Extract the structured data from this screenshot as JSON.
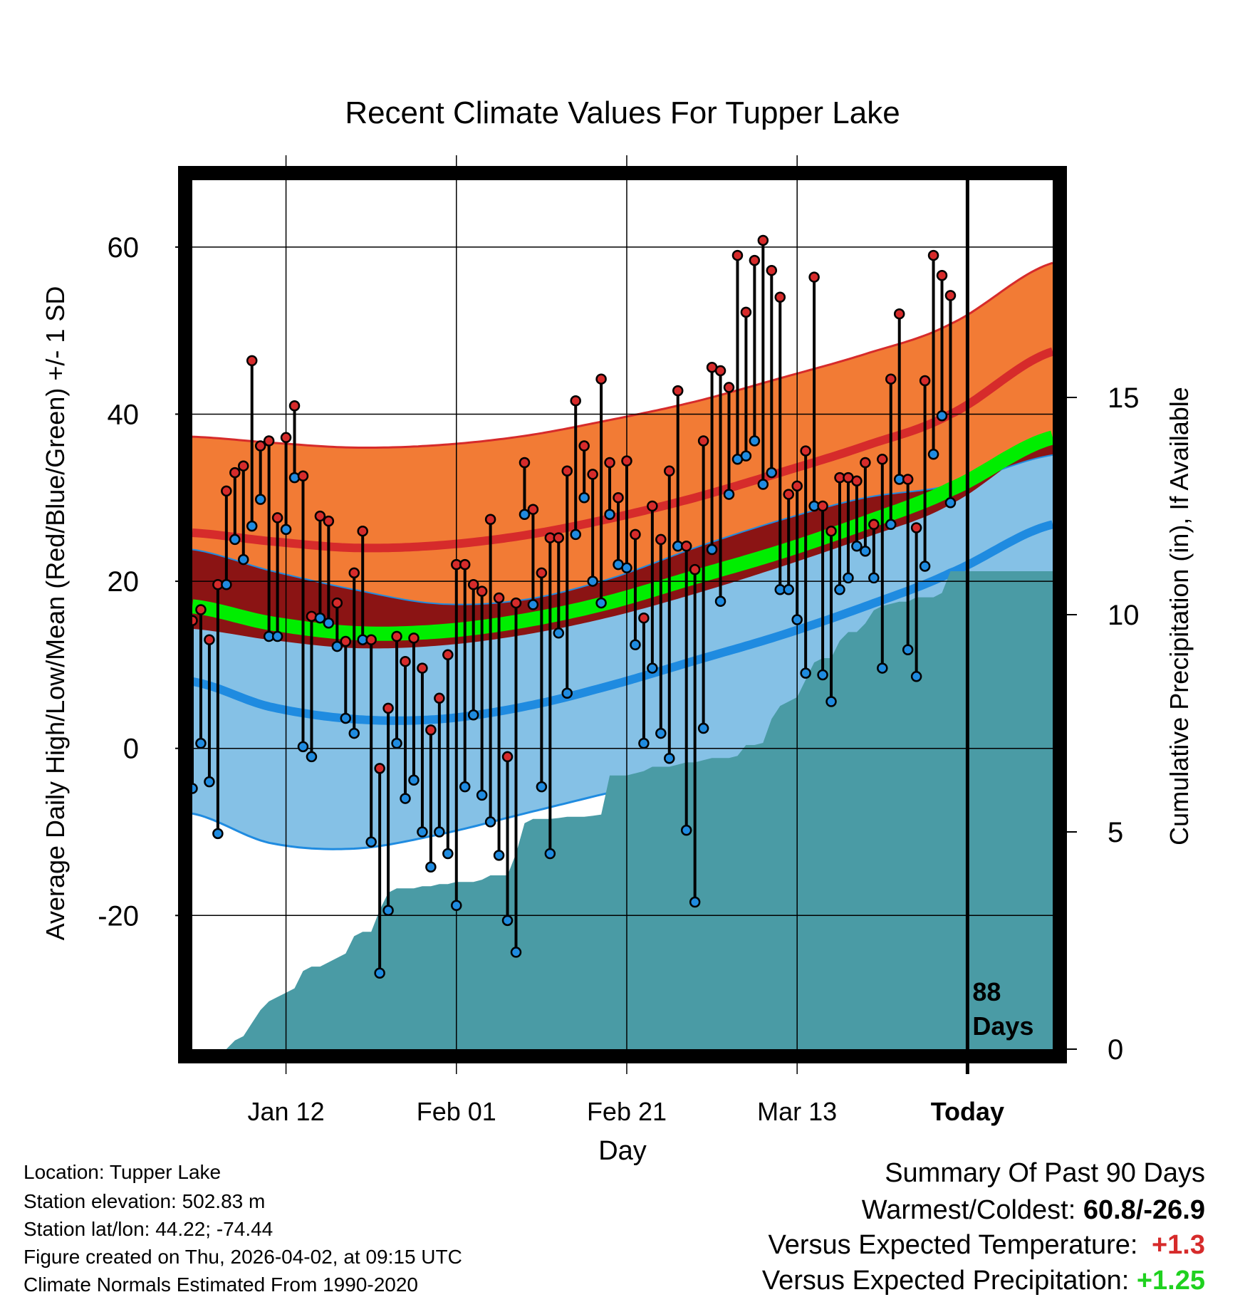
{
  "chart_data": {
    "type": "line",
    "title": "Recent Climate Values For Tupper Lake",
    "xlabel": "Day",
    "ylabel": "Average Daily High/Low/Mean (Red/Blue/Green) +/- 1 SD",
    "y2label": "Cumulative Precipitation (in), If Available",
    "ylim": [
      -36,
      68
    ],
    "y2lim": [
      0,
      20
    ],
    "yticks": [
      "-20",
      "0",
      "20",
      "40",
      "60"
    ],
    "y2ticks": [
      "0",
      "5",
      "10",
      "15"
    ],
    "xticks": [
      {
        "day": 12,
        "label": "Jan 12"
      },
      {
        "day": 32,
        "label": "Feb 01"
      },
      {
        "day": 52,
        "label": "Feb 21"
      },
      {
        "day": 72,
        "label": "Mar 13"
      },
      {
        "day": 92,
        "label": "Today"
      }
    ],
    "xlim": [
      1,
      102
    ],
    "today_day": 92,
    "today_label": [
      "88",
      "Days"
    ],
    "normals": {
      "days": [
        1,
        10,
        20,
        30,
        40,
        50,
        60,
        70,
        80,
        90,
        102
      ],
      "high_mean": [
        25.8,
        24.8,
        24.0,
        24.3,
        25.5,
        27.5,
        30.0,
        33.0,
        36.2,
        40.0,
        47.5
      ],
      "high_sd": [
        11.5,
        11.8,
        12.0,
        12.0,
        11.9,
        11.8,
        11.5,
        11.3,
        11.0,
        10.8,
        10.6
      ],
      "low_mean": [
        8.0,
        5.0,
        3.5,
        3.5,
        5.0,
        7.5,
        10.5,
        13.5,
        17.0,
        21.0,
        26.8
      ],
      "low_sd": [
        15.8,
        16.3,
        15.5,
        13.8,
        12.8,
        12.8,
        13.5,
        13.8,
        13.0,
        10.5,
        8.3
      ],
      "mean_mean": [
        17.0,
        15.0,
        13.8,
        14.0,
        15.3,
        17.5,
        20.5,
        23.5,
        27.0,
        31.0,
        37.2
      ]
    },
    "series": [
      {
        "name": "High",
        "color": "#d62b2b",
        "values": [
          15.3,
          16.6,
          13.0,
          19.6,
          30.8,
          33.0,
          33.8,
          46.4,
          36.2,
          36.8,
          27.6,
          37.2,
          41.0,
          32.6,
          15.8,
          27.8,
          27.2,
          17.4,
          12.8,
          21.0,
          26.0,
          13.0,
          -2.4,
          4.8,
          13.4,
          10.4,
          13.2,
          9.6,
          2.2,
          6.0,
          11.2,
          22.0,
          22.0,
          19.6,
          18.8,
          27.4,
          18.0,
          -1.0,
          17.4,
          34.2,
          28.6,
          21.0,
          25.2,
          25.2,
          33.2,
          41.6,
          36.2,
          32.8,
          44.2,
          34.2,
          30.0,
          34.4,
          25.6,
          15.6,
          29.0,
          25.0,
          33.2,
          42.8,
          24.2,
          21.4,
          36.8,
          45.6,
          45.2,
          43.2,
          59.0,
          52.2,
          58.4,
          60.8,
          57.2,
          54.0,
          30.4,
          31.4,
          35.6,
          56.4,
          29.0,
          26.0,
          32.4,
          32.4,
          32.0,
          34.2,
          26.8,
          34.6,
          44.2,
          52.0,
          32.2,
          26.4,
          44.0,
          59.0,
          56.6,
          54.2
        ]
      },
      {
        "name": "Low",
        "color": "#1f8be0",
        "values": [
          -4.8,
          0.6,
          -4.0,
          -10.2,
          19.6,
          25.0,
          22.6,
          26.6,
          29.8,
          13.4,
          13.4,
          26.2,
          32.4,
          0.2,
          -1.0,
          15.6,
          15.0,
          12.2,
          3.6,
          1.8,
          13.0,
          -11.2,
          -26.9,
          -19.4,
          0.6,
          -6.0,
          -3.8,
          -10.0,
          -14.2,
          -10.0,
          -12.6,
          -18.8,
          -4.6,
          4.0,
          -5.6,
          -8.8,
          -12.8,
          -20.6,
          -24.4,
          28.0,
          17.2,
          -4.6,
          -12.6,
          13.8,
          6.6,
          25.6,
          30.0,
          20.0,
          17.4,
          28.0,
          22.0,
          21.6,
          12.4,
          0.6,
          9.6,
          1.8,
          -1.2,
          24.2,
          -9.8,
          -18.4,
          2.4,
          23.8,
          17.6,
          30.4,
          34.6,
          35.0,
          36.8,
          31.6,
          33.0,
          19.0,
          19.0,
          15.4,
          9.0,
          29.0,
          8.8,
          5.6,
          19.0,
          20.4,
          24.2,
          23.6,
          20.4,
          9.6,
          26.8,
          32.2,
          11.8,
          8.6,
          21.8,
          35.2,
          39.8,
          29.4
        ]
      }
    ],
    "precip_cumulative": {
      "days": [
        1,
        5,
        6,
        7,
        8,
        9,
        10,
        11,
        12,
        13,
        14,
        15,
        16,
        17,
        18,
        19,
        20,
        21,
        22,
        23,
        24,
        25,
        26,
        27,
        28,
        29,
        30,
        31,
        32,
        33,
        34,
        35,
        36,
        37,
        38,
        39,
        40,
        41,
        42,
        43,
        44,
        45,
        46,
        47,
        48,
        49,
        50,
        51,
        52,
        53,
        54,
        55,
        56,
        57,
        58,
        59,
        60,
        61,
        62,
        63,
        64,
        65,
        66,
        67,
        68,
        69,
        70,
        71,
        72,
        73,
        74,
        75,
        76,
        77,
        78,
        79,
        80,
        81,
        82,
        83,
        84,
        85,
        86,
        87,
        88,
        89,
        90,
        91,
        92,
        93,
        94,
        95,
        96,
        97,
        98,
        99,
        100,
        101,
        102
      ],
      "values": [
        0,
        0,
        0.2,
        0.3,
        0.6,
        0.9,
        1.1,
        1.2,
        1.3,
        1.4,
        1.8,
        1.9,
        1.9,
        2.0,
        2.1,
        2.2,
        2.6,
        2.7,
        2.7,
        3.2,
        3.6,
        3.7,
        3.7,
        3.7,
        3.75,
        3.75,
        3.8,
        3.8,
        3.85,
        3.85,
        3.85,
        3.9,
        4.0,
        4.0,
        4.0,
        4.5,
        5.2,
        5.3,
        5.3,
        5.3,
        5.32,
        5.35,
        5.35,
        5.35,
        5.37,
        5.4,
        6.3,
        6.3,
        6.3,
        6.35,
        6.4,
        6.5,
        6.5,
        6.5,
        6.55,
        6.6,
        6.6,
        6.65,
        6.7,
        6.7,
        6.7,
        6.75,
        7.0,
        7.0,
        7.05,
        7.6,
        7.9,
        8.0,
        8.1,
        8.5,
        8.9,
        9.0,
        9.0,
        9.4,
        9.6,
        9.6,
        9.8,
        10.1,
        10.2,
        10.25,
        10.3,
        10.3,
        10.4,
        10.4,
        10.4,
        10.5,
        11.0,
        11.0,
        11.0,
        11.0,
        11.0,
        11.0,
        11.0,
        11.0,
        11.0,
        11.0,
        11.0,
        11.0,
        11.0
      ]
    },
    "legend": "none",
    "grid": true
  },
  "meta": {
    "location": "Location: Tupper Lake",
    "elevation": "Station elevation: 502.83 m",
    "latlon": "Station lat/lon: 44.22; -74.44",
    "created": "Figure created on Thu, 2026-04-02, at 09:15 UTC",
    "normals": "Climate Normals Estimated From 1990-2020"
  },
  "summary": {
    "heading": "Summary Of Past 90 Days",
    "warmest_label": "Warmest/Coldest:",
    "warmest_value": "60.8/-26.9",
    "temp_label": "Versus Expected Temperature:",
    "temp_value": "+1.3",
    "precip_label": "Versus Expected Precipitation:",
    "precip_value": "+1.25"
  },
  "colors": {
    "high_band": "#f27b35",
    "high_line": "#d62b2b",
    "low_band": "#85c1e6",
    "low_line": "#1f8be0",
    "overlap": "#8b1414",
    "mean_band": "#00ee00",
    "precip": "#4a9ba5",
    "high_dot": "#d62b2b",
    "low_dot": "#1f8be0"
  }
}
